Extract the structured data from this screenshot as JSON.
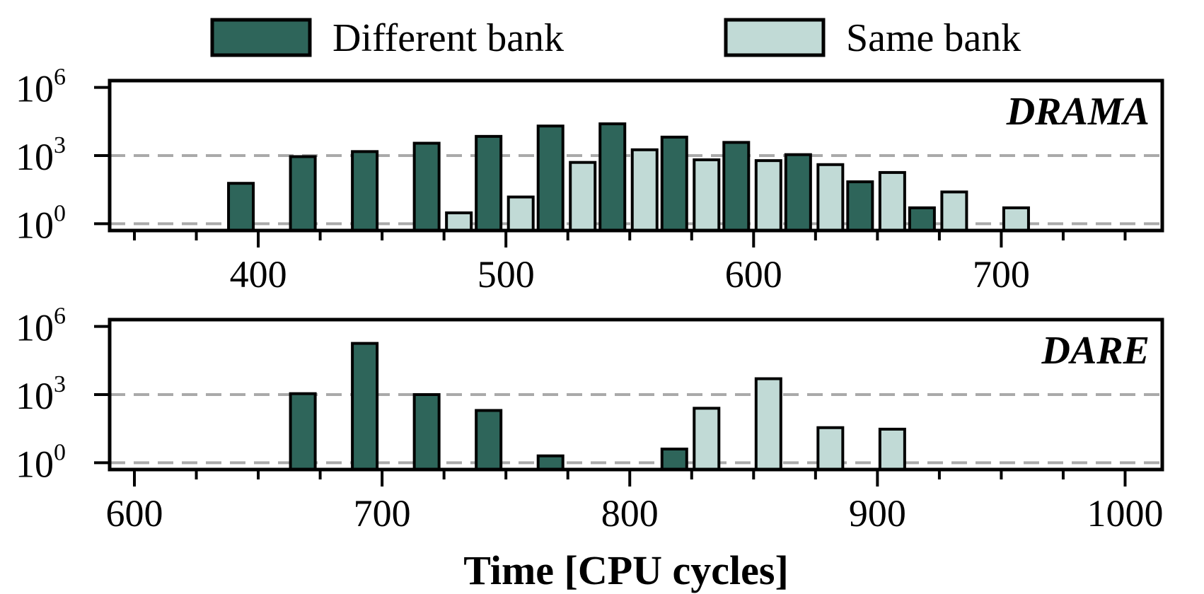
{
  "chart_data": {
    "type": "bar",
    "xlabel": "Time [CPU cycles]",
    "yscale": "log",
    "legend": {
      "placement": "top-center",
      "entries": [
        {
          "label": "Different bank",
          "color": "#2e655a"
        },
        {
          "label": "Same bank",
          "color": "#c1dad6"
        }
      ]
    },
    "grid_lines": [
      1,
      1000
    ],
    "panels": [
      {
        "label": "DRAMA",
        "xlim": [
          340,
          765
        ],
        "ylim": [
          0.5,
          2000000
        ],
        "xticks": [
          400,
          500,
          600,
          700
        ],
        "yticks": [
          1,
          1000,
          1000000
        ],
        "ytick_labels": [
          {
            "base": "10",
            "exp": "0"
          },
          {
            "base": "10",
            "exp": "3"
          },
          {
            "base": "10",
            "exp": "6"
          }
        ],
        "bar_width": 10,
        "series": [
          {
            "name": "Different bank",
            "color": "#2e655a",
            "x": [
              393,
              418,
              443,
              468,
              493,
              518,
              543,
              568,
              593,
              618,
              643,
              668
            ],
            "values": [
              60,
              900,
              1500,
              3500,
              7000,
              20000,
              25000,
              6500,
              3800,
              1100,
              70,
              5
            ]
          },
          {
            "name": "Same bank",
            "color": "#c1dad6",
            "x": [
              481,
              506,
              531,
              556,
              581,
              606,
              631,
              656,
              681,
              706
            ],
            "values": [
              3,
              15,
              500,
              1800,
              650,
              600,
              400,
              180,
              25,
              5
            ]
          }
        ]
      },
      {
        "label": "DARE",
        "xlim": [
          590,
          1015
        ],
        "ylim": [
          0.5,
          2000000
        ],
        "xticks": [
          600,
          700,
          800,
          900,
          1000
        ],
        "yticks": [
          1,
          1000,
          1000000
        ],
        "ytick_labels": [
          {
            "base": "10",
            "exp": "0"
          },
          {
            "base": "10",
            "exp": "3"
          },
          {
            "base": "10",
            "exp": "6"
          }
        ],
        "bar_width": 10,
        "series": [
          {
            "name": "Different bank",
            "color": "#2e655a",
            "x": [
              668,
              693,
              718,
              743,
              768,
              818
            ],
            "values": [
              1100,
              180000,
              1000,
              200,
              2,
              4
            ]
          },
          {
            "name": "Same bank",
            "color": "#c1dad6",
            "x": [
              831,
              856,
              881,
              906
            ],
            "values": [
              250,
              5000,
              35,
              30
            ]
          }
        ]
      }
    ]
  }
}
